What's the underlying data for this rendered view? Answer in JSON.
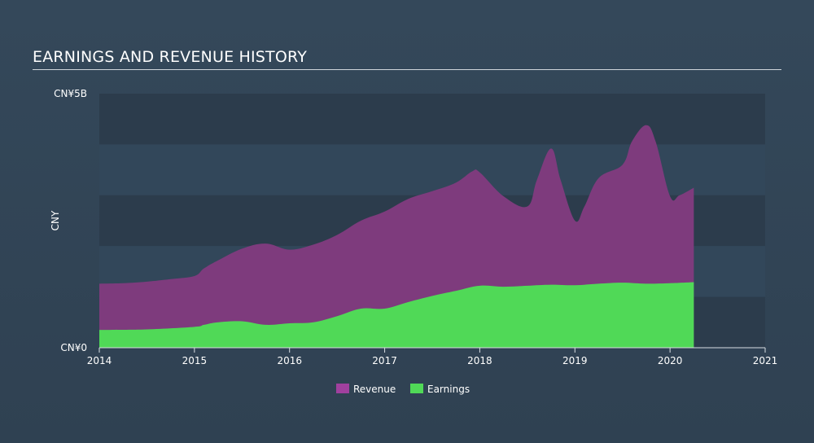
{
  "chart_data": {
    "type": "area",
    "title": "EARNINGS AND REVENUE HISTORY",
    "ylabel": "CNY",
    "xlabel": "",
    "ylim": [
      0,
      5
    ],
    "xlim": [
      2014,
      2021
    ],
    "y_tick_labels": [
      {
        "value": 5,
        "label": "CN¥5B"
      },
      {
        "value": 0,
        "label": "CN¥0"
      }
    ],
    "x_tick_labels": [
      "2014",
      "2015",
      "2016",
      "2017",
      "2018",
      "2019",
      "2020",
      "2021"
    ],
    "x_tick_values": [
      2014,
      2015,
      2016,
      2017,
      2018,
      2019,
      2020,
      2021
    ],
    "grid": true,
    "legend_position": "bottom-center",
    "series": [
      {
        "name": "Revenue",
        "color": "#7e3b7d",
        "legend_color": "#a0409e",
        "x": [
          2014.0,
          2014.25,
          2014.5,
          2014.75,
          2015.0,
          2015.1,
          2015.25,
          2015.5,
          2015.75,
          2016.0,
          2016.25,
          2016.5,
          2016.75,
          2017.0,
          2017.25,
          2017.5,
          2017.75,
          2017.92,
          2018.0,
          2018.25,
          2018.5,
          2018.6,
          2018.75,
          2018.85,
          2019.0,
          2019.1,
          2019.25,
          2019.5,
          2019.6,
          2019.75,
          2019.85,
          2020.0,
          2020.1,
          2020.25
        ],
        "values": [
          1.26,
          1.27,
          1.3,
          1.35,
          1.41,
          1.56,
          1.72,
          1.95,
          2.05,
          1.93,
          2.03,
          2.22,
          2.5,
          2.68,
          2.93,
          3.08,
          3.25,
          3.47,
          3.45,
          2.98,
          2.78,
          3.3,
          3.92,
          3.3,
          2.5,
          2.78,
          3.34,
          3.6,
          4.06,
          4.38,
          4.05,
          2.98,
          3.0,
          3.15
        ]
      },
      {
        "name": "Earnings",
        "color": "#50d957",
        "legend_color": "#50d957",
        "x": [
          2014.0,
          2014.5,
          2015.0,
          2015.1,
          2015.25,
          2015.5,
          2015.75,
          2016.0,
          2016.25,
          2016.5,
          2016.75,
          2017.0,
          2017.25,
          2017.5,
          2017.75,
          2018.0,
          2018.25,
          2018.5,
          2018.75,
          2019.0,
          2019.25,
          2019.5,
          2019.75,
          2020.0,
          2020.25
        ],
        "values": [
          0.35,
          0.36,
          0.41,
          0.45,
          0.5,
          0.52,
          0.45,
          0.48,
          0.5,
          0.62,
          0.77,
          0.77,
          0.9,
          1.02,
          1.12,
          1.22,
          1.2,
          1.22,
          1.24,
          1.23,
          1.26,
          1.28,
          1.26,
          1.27,
          1.29
        ]
      }
    ]
  }
}
